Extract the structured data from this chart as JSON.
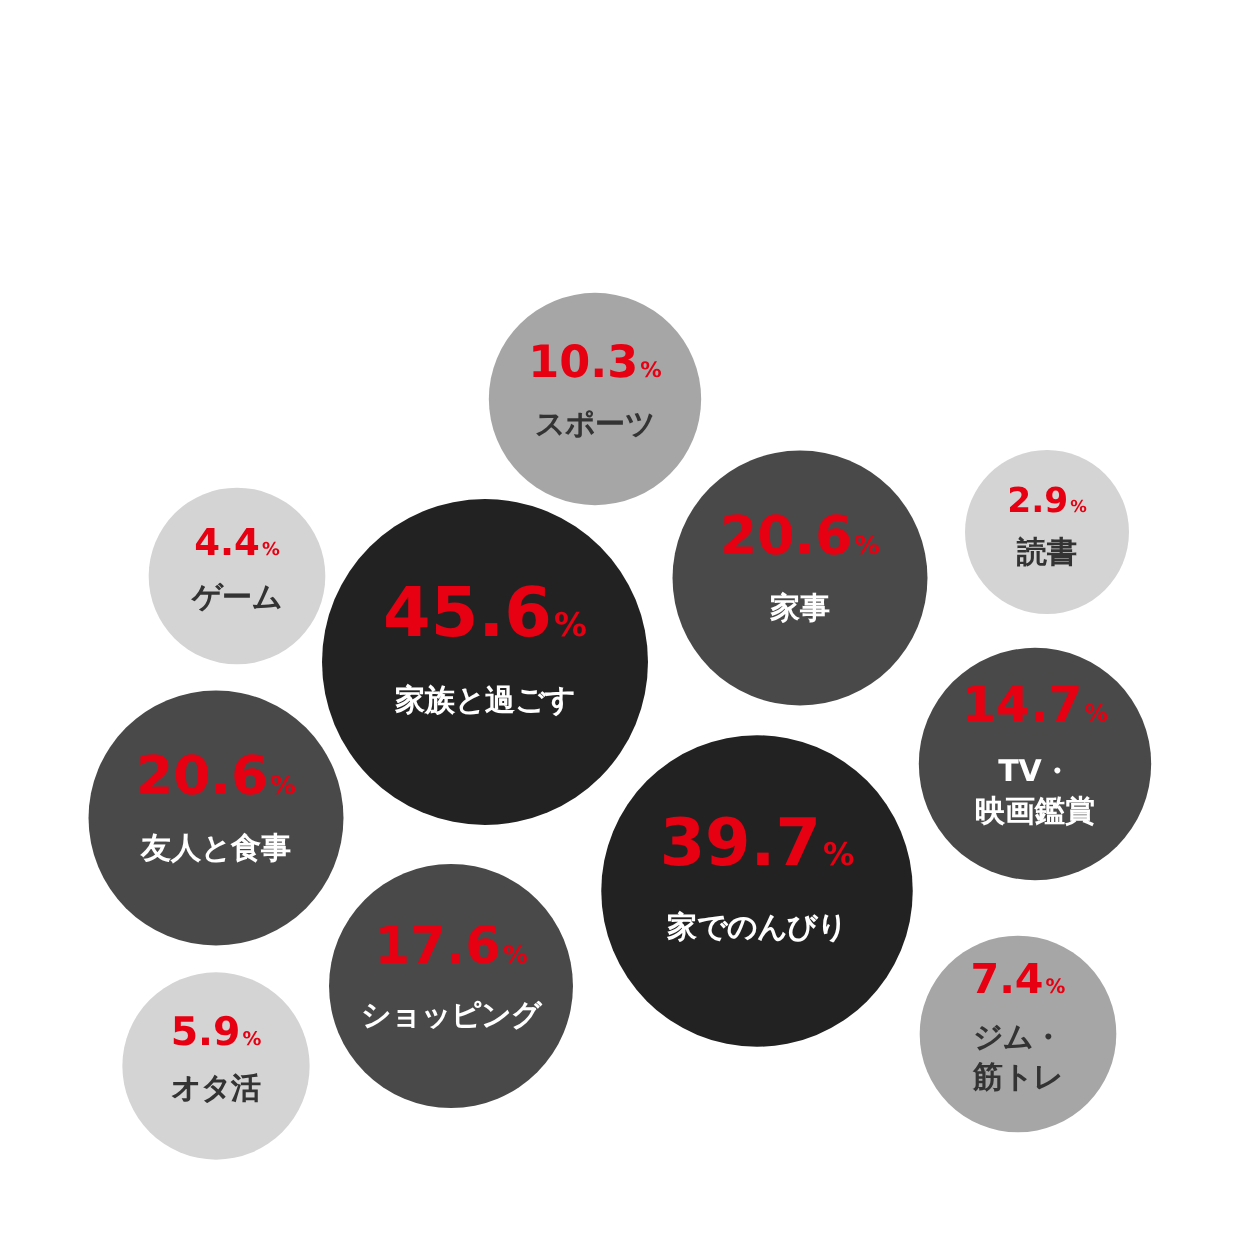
{
  "chart_data": {
    "type": "other",
    "categories": [
      "家族と過ごす",
      "家でのんびり",
      "家事",
      "友人と食事",
      "ショッピング",
      "TV・映画鑑賞",
      "スポーツ",
      "ジム・筋トレ",
      "オタ活",
      "ゲーム",
      "読書"
    ],
    "values": [
      45.6,
      39.7,
      20.6,
      20.6,
      17.6,
      14.7,
      10.3,
      7.4,
      5.9,
      4.4,
      2.9
    ],
    "value_labels": [
      "45.6%",
      "39.7%",
      "20.6%",
      "20.6%",
      "17.6%",
      "14.7%",
      "10.3%",
      "7.4%",
      "5.9%",
      "4.4%",
      "2.9%"
    ],
    "colors": [
      "#222222",
      "#222222",
      "#494949",
      "#494949",
      "#494949",
      "#494949",
      "#a6a6a6",
      "#a6a6a6",
      "#d4d4d4",
      "#d4d4d4",
      "#d4d4d4"
    ]
  }
}
